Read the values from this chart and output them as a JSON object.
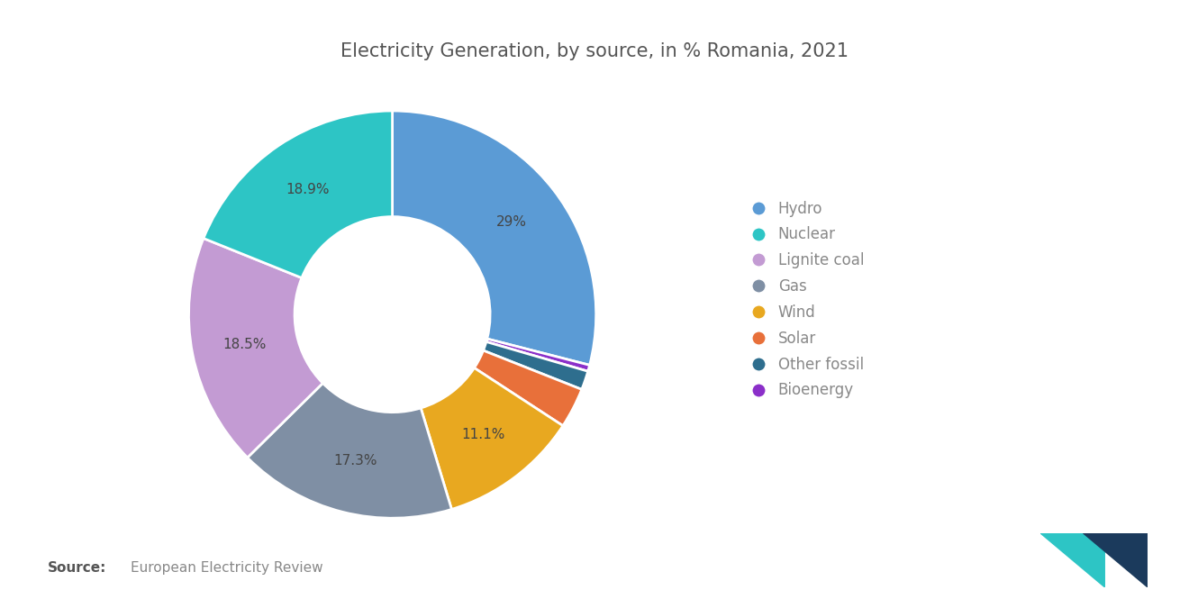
{
  "title": "Electricity Generation, by source, in % Romania, 2021",
  "title_fontsize": 15,
  "title_color": "#555555",
  "labels": [
    "Hydro",
    "Nuclear",
    "Lignite coal",
    "Gas",
    "Wind",
    "Solar",
    "Other fossil",
    "Bioenergy"
  ],
  "values": [
    29.0,
    18.9,
    18.5,
    17.3,
    11.1,
    3.2,
    1.5,
    0.5
  ],
  "colors": [
    "#5B9BD5",
    "#2DC5C5",
    "#C39BD3",
    "#7F8FA4",
    "#E8A820",
    "#E8703A",
    "#2E6E8E",
    "#8B2FC9"
  ],
  "wedge_edge_color": "white",
  "source_bold": "Source:",
  "source_text": "European Electricity Review",
  "source_fontsize": 11,
  "source_color": "#888888",
  "background_color": "#ffffff",
  "legend_fontsize": 12,
  "legend_text_color": "#888888",
  "pct_labels": {
    "0": "29%",
    "1": "18.9%",
    "2": "18.5%",
    "3": "17.3%",
    "4": "11.1%"
  }
}
